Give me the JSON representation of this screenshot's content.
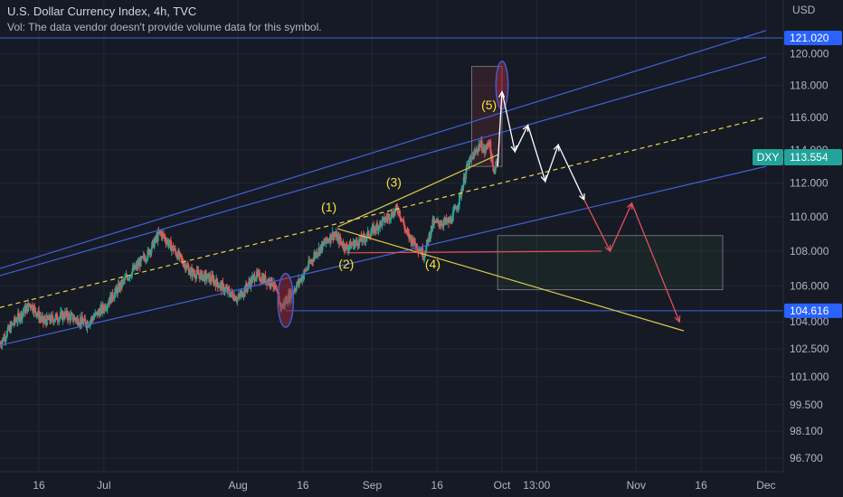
{
  "header": {
    "title": "U.S. Dollar Currency Index, 4h, TVC",
    "volume_note": "Vol: The data vendor doesn't provide volume data for this symbol."
  },
  "colors": {
    "background": "#161a25",
    "grid": "#232734",
    "candle_up": "#26a69a",
    "candle_down": "#ef5350",
    "channel_line": "#3f63d8",
    "midline": "#e6d84a",
    "trend_yellow": "#d8c94a",
    "projection_white": "#ffffff",
    "projection_red": "#e0505a",
    "badge_blue": "#2962ff",
    "badge_teal": "#22a39a"
  },
  "chart_data": {
    "type": "candlestick",
    "symbol": "DXY",
    "timeframe": "4h",
    "currency_label": "USD",
    "y_axis": {
      "scale": "log",
      "range": [
        96.0,
        123.5
      ],
      "ticks": [
        96.7,
        98.1,
        99.5,
        101.0,
        102.5,
        104.0,
        106.0,
        108.0,
        110.0,
        112.0,
        114.0,
        116.0,
        118.0,
        120.0
      ],
      "tick_labels": [
        "96.700",
        "98.100",
        "99.500",
        "101.000",
        "102.500",
        "104.000",
        "106.000",
        "108.000",
        "110.000",
        "112.000",
        "114.000",
        "116.000",
        "118.000",
        "120.000"
      ]
    },
    "x_axis": {
      "start_date": "2022-06-07",
      "end_date": "2022-12-05",
      "ticks": [
        {
          "date": "2022-06-16",
          "label": "16"
        },
        {
          "date": "2022-07-01",
          "label": "Jul"
        },
        {
          "date": "2022-08-01",
          "label": "Aug"
        },
        {
          "date": "2022-08-16",
          "label": "16"
        },
        {
          "date": "2022-09-01",
          "label": "Sep"
        },
        {
          "date": "2022-09-16",
          "label": "16"
        },
        {
          "date": "2022-10-01",
          "label": "Oct"
        },
        {
          "date": "2022-10-09",
          "label": "13:00"
        },
        {
          "date": "2022-11-01",
          "label": "Nov"
        },
        {
          "date": "2022-11-16",
          "label": "16"
        },
        {
          "date": "2022-12-01",
          "label": "Dec"
        }
      ]
    },
    "price_path": [
      [
        "2022-06-07",
        102.8
      ],
      [
        "2022-06-10",
        103.9
      ],
      [
        "2022-06-14",
        105.0
      ],
      [
        "2022-06-17",
        104.0
      ],
      [
        "2022-06-22",
        104.4
      ],
      [
        "2022-06-27",
        103.9
      ],
      [
        "2022-07-01",
        104.8
      ],
      [
        "2022-07-06",
        106.4
      ],
      [
        "2022-07-11",
        107.8
      ],
      [
        "2022-07-14",
        109.1
      ],
      [
        "2022-07-18",
        107.8
      ],
      [
        "2022-07-21",
        106.8
      ],
      [
        "2022-07-26",
        106.4
      ],
      [
        "2022-07-29",
        105.8
      ],
      [
        "2022-08-01",
        105.3
      ],
      [
        "2022-08-05",
        106.6
      ],
      [
        "2022-08-09",
        106.2
      ],
      [
        "2022-08-11",
        104.8
      ],
      [
        "2022-08-15",
        106.2
      ],
      [
        "2022-08-19",
        107.9
      ],
      [
        "2022-08-23",
        109.0
      ],
      [
        "2022-08-26",
        108.2
      ],
      [
        "2022-08-30",
        108.7
      ],
      [
        "2022-09-02",
        109.4
      ],
      [
        "2022-09-07",
        110.5
      ],
      [
        "2022-09-09",
        109.0
      ],
      [
        "2022-09-13",
        107.8
      ],
      [
        "2022-09-15",
        109.6
      ],
      [
        "2022-09-19",
        109.7
      ],
      [
        "2022-09-21",
        110.9
      ],
      [
        "2022-09-23",
        113.0
      ],
      [
        "2022-09-26",
        114.4
      ],
      [
        "2022-09-27",
        113.9
      ],
      [
        "2022-09-28",
        114.6
      ],
      [
        "2022-09-29",
        112.6
      ],
      [
        "2022-09-30",
        113.6
      ]
    ],
    "current_price": {
      "symbol": "DXY",
      "value": 113.554,
      "label": "113.554"
    },
    "price_badges": [
      {
        "value": 121.02,
        "label": "121.020"
      },
      {
        "value": 104.616,
        "label": "104.616"
      }
    ],
    "horizontal_lines": [
      {
        "value": 121.02,
        "from_date": "2022-06-07"
      },
      {
        "value": 104.616,
        "from_date": "2022-08-12"
      }
    ],
    "channels": [
      {
        "name": "",
        "start": [
          "2022-06-07",
          107.0
        ],
        "end": [
          "2022-12-01",
          121.5
        ]
      },
      {
        "name": "",
        "start": [
          "2022-06-07",
          106.6
        ],
        "end": [
          "2022-12-01",
          119.8
        ]
      },
      {
        "name": "",
        "start": [
          "2022-06-07",
          102.7
        ],
        "end": [
          "2022-12-01",
          113.0
        ]
      }
    ],
    "midline": {
      "start": [
        "2022-06-07",
        104.8
      ],
      "end": [
        "2022-12-01",
        116.0
      ]
    },
    "trend_lines": [
      {
        "start": [
          "2022-08-24",
          109.4
        ],
        "end": [
          "2022-09-30",
          113.7
        ]
      },
      {
        "start": [
          "2022-08-24",
          109.3
        ],
        "end": [
          "2022-11-12",
          103.5
        ]
      }
    ],
    "support_segment": {
      "start": [
        "2022-08-26",
        107.9
      ],
      "end": [
        "2022-10-24",
        108.0
      ]
    },
    "rectangles": [
      {
        "kind": "red",
        "x1": "2022-09-24",
        "x2": "2022-10-01",
        "y1": 113.0,
        "y2": 119.2
      },
      {
        "kind": "green",
        "x1": "2022-09-30",
        "x2": "2022-11-21",
        "y1": 105.8,
        "y2": 108.9
      }
    ],
    "ellipses": [
      {
        "cx": "2022-10-01",
        "cy": 118.0,
        "rx_days": 1.4,
        "ry_price": 1.5
      },
      {
        "cx": "2022-08-12",
        "cy": 105.2,
        "rx_days": 1.8,
        "ry_price": 1.5
      }
    ],
    "wave_labels": [
      {
        "text": "(1)",
        "date": "2022-08-22",
        "price": 110.3
      },
      {
        "text": "(2)",
        "date": "2022-08-26",
        "price": 107.0
      },
      {
        "text": "(3)",
        "date": "2022-09-06",
        "price": 111.8
      },
      {
        "text": "(4)",
        "date": "2022-09-15",
        "price": 107.0
      },
      {
        "text": "(5)",
        "date": "2022-09-28",
        "price": 116.5
      }
    ],
    "projection_white": [
      [
        "2022-09-30",
        113.0
      ],
      [
        "2022-10-01",
        117.6
      ],
      [
        "2022-10-04",
        113.9
      ],
      [
        "2022-10-07",
        115.5
      ],
      [
        "2022-10-11",
        112.1
      ],
      [
        "2022-10-14",
        114.3
      ],
      [
        "2022-10-20",
        111.0
      ]
    ],
    "projection_red": [
      [
        "2022-10-20",
        111.0
      ],
      [
        "2022-10-26",
        108.0
      ],
      [
        "2022-10-31",
        110.8
      ],
      [
        "2022-11-11",
        104.0
      ]
    ]
  }
}
